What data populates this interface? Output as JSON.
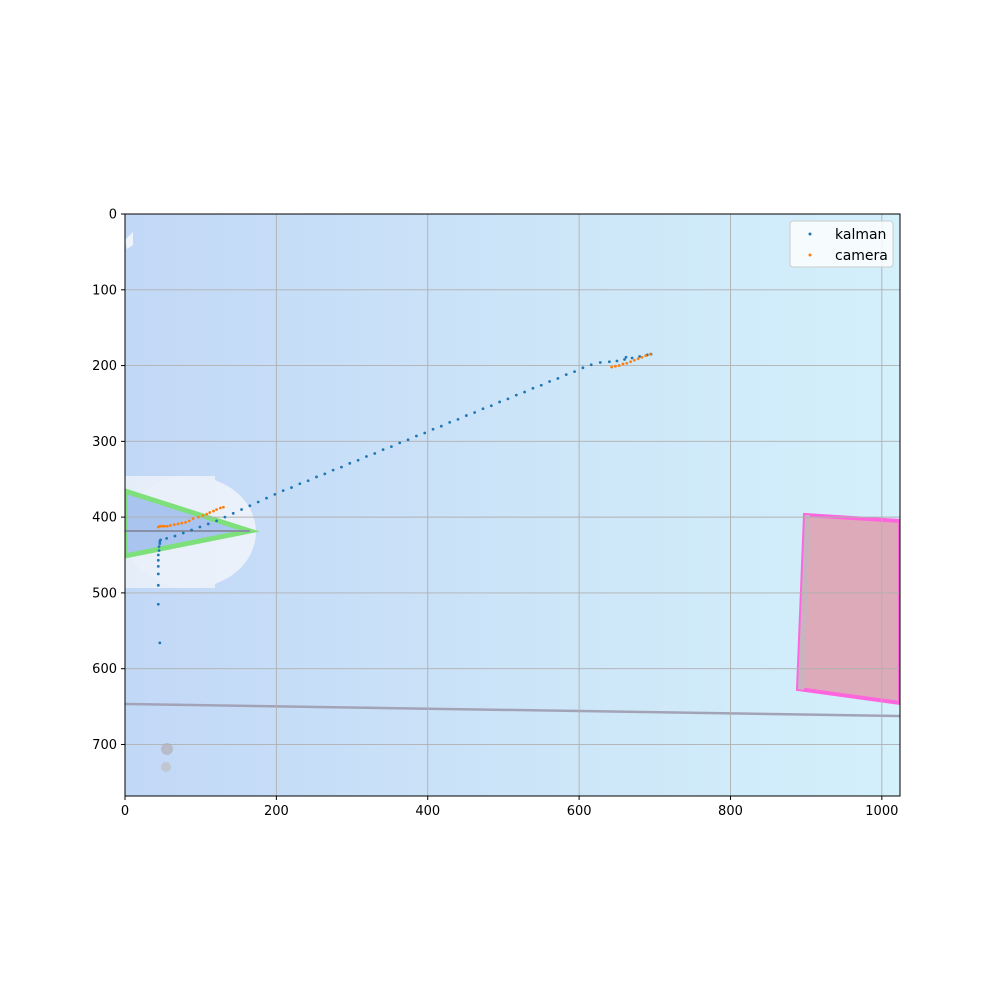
{
  "chart_data": {
    "type": "scatter",
    "title": "",
    "xlabel": "",
    "ylabel": "",
    "xlim": [
      0,
      1024
    ],
    "ylim": [
      768,
      0
    ],
    "y_axis_inverted": true,
    "grid": true,
    "background": "camera image of the field (robot with green triangle at left, pink rectangle target at right)",
    "x_ticks": [
      "0",
      "200",
      "400",
      "600",
      "800",
      "1000"
    ],
    "y_ticks": [
      "0",
      "100",
      "200",
      "300",
      "400",
      "500",
      "600",
      "700"
    ],
    "legend": {
      "placement": "top-right"
    },
    "series": [
      {
        "name": "kalman",
        "color": "#1f77b4",
        "points": [
          [
            46,
            566
          ],
          [
            44,
            515
          ],
          [
            44,
            490
          ],
          [
            44,
            475
          ],
          [
            44,
            465
          ],
          [
            44,
            457
          ],
          [
            44,
            450
          ],
          [
            45,
            444
          ],
          [
            45,
            439
          ],
          [
            46,
            435
          ],
          [
            46,
            432
          ],
          [
            47,
            430
          ],
          [
            55,
            428
          ],
          [
            66,
            425
          ],
          [
            77,
            421
          ],
          [
            88,
            417
          ],
          [
            99,
            413
          ],
          [
            110,
            409
          ],
          [
            121,
            405
          ],
          [
            132,
            400
          ],
          [
            143,
            395
          ],
          [
            154,
            390
          ],
          [
            165,
            385
          ],
          [
            176,
            380
          ],
          [
            187,
            375
          ],
          [
            198,
            370
          ],
          [
            209,
            365
          ],
          [
            220,
            361
          ],
          [
            231,
            356
          ],
          [
            242,
            352
          ],
          [
            253,
            347
          ],
          [
            264,
            343
          ],
          [
            275,
            338
          ],
          [
            286,
            334
          ],
          [
            297,
            329
          ],
          [
            308,
            325
          ],
          [
            319,
            320
          ],
          [
            330,
            316
          ],
          [
            341,
            311
          ],
          [
            352,
            307
          ],
          [
            363,
            302
          ],
          [
            374,
            298
          ],
          [
            385,
            293
          ],
          [
            396,
            289
          ],
          [
            407,
            284
          ],
          [
            418,
            280
          ],
          [
            429,
            275
          ],
          [
            440,
            271
          ],
          [
            451,
            266
          ],
          [
            462,
            262
          ],
          [
            473,
            257
          ],
          [
            484,
            253
          ],
          [
            495,
            248
          ],
          [
            506,
            244
          ],
          [
            517,
            239
          ],
          [
            528,
            235
          ],
          [
            539,
            230
          ],
          [
            550,
            226
          ],
          [
            561,
            221
          ],
          [
            572,
            217
          ],
          [
            583,
            212
          ],
          [
            594,
            208
          ],
          [
            605,
            203
          ],
          [
            616,
            199
          ],
          [
            628,
            196
          ],
          [
            640,
            195
          ],
          [
            650,
            194
          ],
          [
            660,
            192
          ],
          [
            662,
            189
          ],
          [
            670,
            190
          ],
          [
            680,
            188
          ],
          [
            690,
            186
          ],
          [
            695,
            185
          ]
        ]
      },
      {
        "name": "camera",
        "color": "#ff7f0e",
        "points": [
          [
            44,
            413
          ],
          [
            46,
            412
          ],
          [
            49,
            412
          ],
          [
            52,
            412
          ],
          [
            56,
            412
          ],
          [
            60,
            411
          ],
          [
            65,
            410
          ],
          [
            70,
            409
          ],
          [
            75,
            408
          ],
          [
            80,
            407
          ],
          [
            85,
            405
          ],
          [
            90,
            402
          ],
          [
            97,
            400
          ],
          [
            103,
            398
          ],
          [
            108,
            396
          ],
          [
            112,
            394
          ],
          [
            117,
            392
          ],
          [
            121,
            390
          ],
          [
            126,
            388
          ],
          [
            130,
            387
          ],
          [
            643,
            202
          ],
          [
            648,
            201
          ],
          [
            653,
            200
          ],
          [
            658,
            198
          ],
          [
            663,
            197
          ],
          [
            668,
            195
          ],
          [
            673,
            193
          ],
          [
            678,
            191
          ],
          [
            683,
            189
          ],
          [
            688,
            187
          ],
          [
            694,
            185
          ]
        ]
      }
    ]
  }
}
